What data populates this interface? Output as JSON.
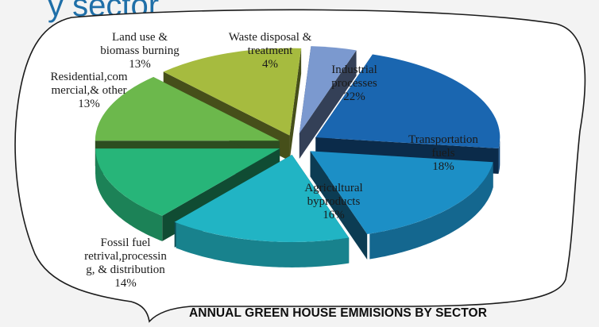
{
  "heading_fragment": "y sector",
  "caption": "ANNUAL GREEN HOUSE EMMISIONS BY SECTOR",
  "chart_data": {
    "type": "pie",
    "title": "",
    "unit": "%",
    "slices": [
      {
        "label_lines": [
          "Industrial",
          "processes"
        ],
        "value_label": "22%",
        "value": 22,
        "color": "#1a66b0"
      },
      {
        "label_lines": [
          "Transportation",
          "fuels"
        ],
        "value_label": "18%",
        "value": 18,
        "color": "#1c8fc6"
      },
      {
        "label_lines": [
          "Agricultural",
          "byproducts"
        ],
        "value_label": "16%",
        "value": 16,
        "color": "#21b4c4"
      },
      {
        "label_lines": [
          "Fossil fuel",
          "retrival,processin",
          "g, & distribution"
        ],
        "value_label": "14%",
        "value": 14,
        "color": "#27b579"
      },
      {
        "label_lines": [
          "Residential,com",
          "mercial,& other"
        ],
        "value_label": "13%",
        "value": 13,
        "color": "#6cb84c"
      },
      {
        "label_lines": [
          "Land use &",
          "biomass burning"
        ],
        "value_label": "13%",
        "value": 13,
        "color": "#a6bb3f"
      },
      {
        "label_lines": [
          "Waste disposal &",
          "treatment"
        ],
        "value_label": "4%",
        "value": 4,
        "color": "#7b99cf"
      }
    ]
  }
}
